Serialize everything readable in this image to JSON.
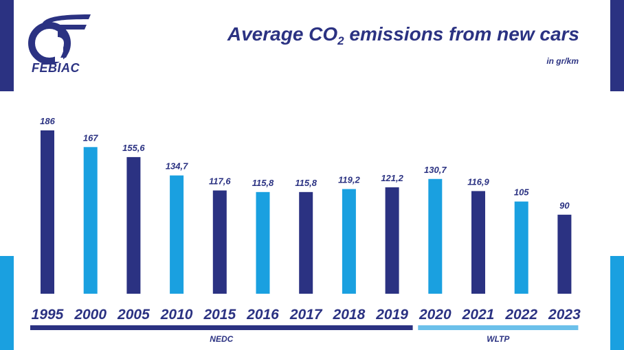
{
  "header": {
    "logo_text": "FEBIAC",
    "title_main": "Average CO",
    "title_sub": "2",
    "title_rest": " emissions from new cars",
    "unit": "in gr/km"
  },
  "colors": {
    "dark": "#2b3282",
    "light": "#1aa0e0",
    "wltp_bar": "#6cc0ea"
  },
  "chart_data": {
    "type": "bar",
    "title": "Average CO2 emissions from new cars",
    "ylabel": "in gr/km",
    "categories": [
      "1995",
      "2000",
      "2005",
      "2010",
      "2015",
      "2016",
      "2017",
      "2018",
      "2019",
      "2020",
      "2021",
      "2022",
      "2023"
    ],
    "values": [
      186,
      167,
      155.6,
      134.7,
      117.6,
      115.8,
      115.8,
      119.2,
      121.2,
      130.7,
      116.9,
      105,
      90
    ],
    "value_labels": [
      "186",
      "167",
      "155,6",
      "134,7",
      "117,6",
      "115,8",
      "115,8",
      "119,2",
      "121,2",
      "130,7",
      "116,9",
      "105",
      "90"
    ],
    "bar_colors": [
      "dark",
      "light",
      "dark",
      "light",
      "dark",
      "light",
      "dark",
      "light",
      "dark",
      "light",
      "dark",
      "light",
      "dark"
    ],
    "ylim": [
      0,
      186
    ],
    "grid": false,
    "legend": "none",
    "groups": [
      {
        "label": "NEDC",
        "from": "1995",
        "to": "2019",
        "color": "dark"
      },
      {
        "label": "WLTP",
        "from": "2020",
        "to": "2023",
        "color": "wltp_bar"
      }
    ]
  }
}
